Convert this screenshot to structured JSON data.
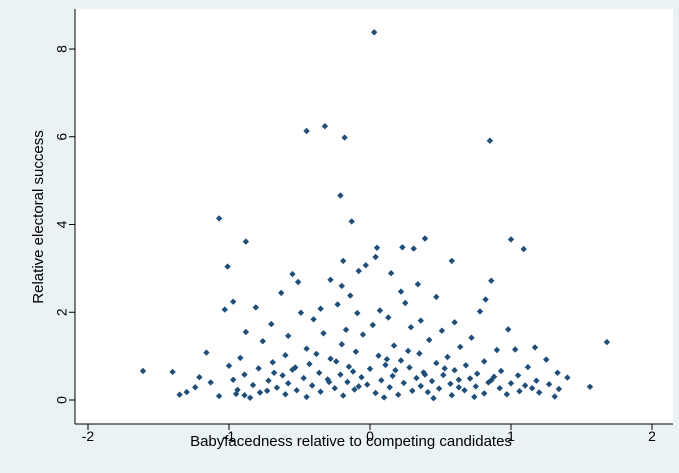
{
  "chart_data": {
    "type": "scatter",
    "title": "",
    "xlabel": "Babyfacedness relative to competing candidates",
    "ylabel": "Relative electoral success",
    "xlim": [
      -2,
      2
    ],
    "ylim": [
      0,
      8
    ],
    "x_ticks": [
      -2,
      -1,
      0,
      1,
      2
    ],
    "y_ticks": [
      0,
      2,
      4,
      6,
      8
    ],
    "grid": false,
    "legend": "none",
    "colors": {
      "background": "#eaf2f3",
      "plot_area": "#ffffff",
      "marker": "#1f4e79"
    },
    "marker": "diamond",
    "series": [
      {
        "points": [
          [
            0.03,
            8.38
          ],
          [
            -0.32,
            6.24
          ],
          [
            -0.45,
            6.13
          ],
          [
            -0.18,
            5.98
          ],
          [
            0.85,
            5.91
          ],
          [
            -0.21,
            4.66
          ],
          [
            -1.07,
            4.14
          ],
          [
            -0.13,
            4.07
          ],
          [
            -0.88,
            3.61
          ],
          [
            0.39,
            3.68
          ],
          [
            1.0,
            3.66
          ],
          [
            1.09,
            3.44
          ],
          [
            0.05,
            3.47
          ],
          [
            0.23,
            3.48
          ],
          [
            0.31,
            3.45
          ],
          [
            0.04,
            3.26
          ],
          [
            -0.19,
            3.17
          ],
          [
            -0.03,
            3.07
          ],
          [
            0.58,
            3.17
          ],
          [
            -1.01,
            3.04
          ],
          [
            -0.55,
            2.87
          ],
          [
            -0.08,
            2.94
          ],
          [
            0.15,
            2.89
          ],
          [
            0.34,
            2.64
          ],
          [
            -0.51,
            2.69
          ],
          [
            -0.28,
            2.74
          ],
          [
            0.86,
            2.72
          ],
          [
            -0.2,
            2.6
          ],
          [
            0.22,
            2.47
          ],
          [
            -0.63,
            2.44
          ],
          [
            -0.97,
            2.24
          ],
          [
            -0.81,
            2.11
          ],
          [
            0.82,
            2.29
          ],
          [
            0.47,
            2.35
          ],
          [
            -0.14,
            2.38
          ],
          [
            -0.35,
            2.08
          ],
          [
            -1.03,
            2.06
          ],
          [
            -0.23,
            2.18
          ],
          [
            0.07,
            2.04
          ],
          [
            0.25,
            2.21
          ],
          [
            -0.49,
            1.99
          ],
          [
            -0.09,
            1.98
          ],
          [
            0.78,
            2.02
          ],
          [
            0.13,
            1.88
          ],
          [
            0.36,
            1.81
          ],
          [
            -0.4,
            1.84
          ],
          [
            0.6,
            1.77
          ],
          [
            -0.7,
            1.73
          ],
          [
            0.98,
            1.61
          ],
          [
            -0.88,
            1.55
          ],
          [
            -0.17,
            1.6
          ],
          [
            0.02,
            1.71
          ],
          [
            0.29,
            1.66
          ],
          [
            0.51,
            1.58
          ],
          [
            -0.58,
            1.46
          ],
          [
            -0.33,
            1.52
          ],
          [
            0.72,
            1.42
          ],
          [
            -0.05,
            1.49
          ],
          [
            0.42,
            1.37
          ],
          [
            -0.76,
            1.34
          ],
          [
            1.68,
            1.32
          ],
          [
            -0.2,
            1.27
          ],
          [
            0.17,
            1.24
          ],
          [
            0.64,
            1.21
          ],
          [
            1.17,
            1.2
          ],
          [
            -1.16,
            1.08
          ],
          [
            -0.45,
            1.17
          ],
          [
            0.9,
            1.14
          ],
          [
            0.35,
            1.06
          ],
          [
            -0.1,
            1.1
          ],
          [
            -0.6,
            1.02
          ],
          [
            0.06,
            1.01
          ],
          [
            0.55,
            0.98
          ],
          [
            1.03,
            1.15
          ],
          [
            -0.92,
            0.96
          ],
          [
            -0.28,
            0.94
          ],
          [
            0.22,
            0.9
          ],
          [
            0.81,
            0.88
          ],
          [
            1.25,
            0.92
          ],
          [
            -0.69,
            0.86
          ],
          [
            -0.43,
            0.82
          ],
          [
            0.11,
            0.8
          ],
          [
            0.47,
            0.84
          ],
          [
            0.68,
            0.79
          ],
          [
            -1.0,
            0.78
          ],
          [
            -0.15,
            0.76
          ],
          [
            0.28,
            0.74
          ],
          [
            1.12,
            0.75
          ],
          [
            -0.79,
            0.72
          ],
          [
            -0.55,
            0.69
          ],
          [
            0.0,
            0.71
          ],
          [
            0.6,
            0.68
          ],
          [
            0.93,
            0.66
          ],
          [
            -1.61,
            0.66
          ],
          [
            -1.4,
            0.64
          ],
          [
            -0.36,
            0.62
          ],
          [
            0.38,
            0.63
          ],
          [
            0.76,
            0.6
          ],
          [
            1.33,
            0.62
          ],
          [
            -0.89,
            0.58
          ],
          [
            -0.62,
            0.56
          ],
          [
            -0.21,
            0.58
          ],
          [
            0.16,
            0.55
          ],
          [
            0.52,
            0.57
          ],
          [
            1.05,
            0.56
          ],
          [
            -1.21,
            0.52
          ],
          [
            -0.47,
            0.5
          ],
          [
            -0.06,
            0.52
          ],
          [
            0.33,
            0.5
          ],
          [
            0.71,
            0.49
          ],
          [
            0.88,
            0.53
          ],
          [
            1.4,
            0.51
          ],
          [
            -0.97,
            0.46
          ],
          [
            -0.72,
            0.44
          ],
          [
            -0.3,
            0.47
          ],
          [
            0.08,
            0.45
          ],
          [
            0.44,
            0.43
          ],
          [
            0.63,
            0.46
          ],
          [
            1.18,
            0.44
          ],
          [
            -1.13,
            0.4
          ],
          [
            -0.58,
            0.38
          ],
          [
            -0.16,
            0.41
          ],
          [
            0.24,
            0.39
          ],
          [
            0.57,
            0.37
          ],
          [
            0.84,
            0.4
          ],
          [
            1.0,
            0.38
          ],
          [
            1.27,
            0.36
          ],
          [
            -0.83,
            0.34
          ],
          [
            -0.41,
            0.33
          ],
          [
            -0.02,
            0.35
          ],
          [
            0.36,
            0.32
          ],
          [
            0.75,
            0.31
          ],
          [
            1.1,
            0.33
          ],
          [
            1.56,
            0.3
          ],
          [
            -1.24,
            0.29
          ],
          [
            -0.66,
            0.28
          ],
          [
            -0.25,
            0.27
          ],
          [
            0.14,
            0.29
          ],
          [
            0.49,
            0.26
          ],
          [
            0.92,
            0.27
          ],
          [
            1.34,
            0.25
          ],
          [
            -0.94,
            0.23
          ],
          [
            -0.52,
            0.22
          ],
          [
            -0.11,
            0.24
          ],
          [
            0.3,
            0.21
          ],
          [
            0.67,
            0.22
          ],
          [
            1.06,
            0.2
          ],
          [
            -1.3,
            0.18
          ],
          [
            -0.78,
            0.17
          ],
          [
            -0.35,
            0.19
          ],
          [
            0.04,
            0.16
          ],
          [
            0.41,
            0.18
          ],
          [
            0.81,
            0.15
          ],
          [
            1.2,
            0.17
          ],
          [
            -1.35,
            0.12
          ],
          [
            -0.89,
            0.11
          ],
          [
            -0.6,
            0.13
          ],
          [
            -0.19,
            0.1
          ],
          [
            0.2,
            0.12
          ],
          [
            0.58,
            0.11
          ],
          [
            0.97,
            0.13
          ],
          [
            1.31,
            0.08
          ],
          [
            -1.07,
            0.09
          ],
          [
            -0.45,
            0.07
          ],
          [
            0.1,
            0.06
          ],
          [
            0.74,
            0.07
          ],
          [
            -0.85,
            0.05
          ],
          [
            0.45,
            0.04
          ],
          [
            -0.95,
            0.14
          ],
          [
            -0.68,
            0.62
          ],
          [
            -0.12,
            0.65
          ],
          [
            0.18,
            0.68
          ],
          [
            0.53,
            0.72
          ],
          [
            -0.38,
            1.05
          ],
          [
            0.27,
            1.12
          ],
          [
            -0.24,
            0.88
          ],
          [
            0.12,
            0.93
          ],
          [
            -0.53,
            0.74
          ],
          [
            0.39,
            0.58
          ],
          [
            -0.08,
            0.31
          ],
          [
            0.63,
            0.29
          ],
          [
            -0.29,
            0.41
          ],
          [
            0.86,
            0.45
          ],
          [
            -0.73,
            0.21
          ],
          [
            1.15,
            0.27
          ]
        ]
      }
    ]
  }
}
